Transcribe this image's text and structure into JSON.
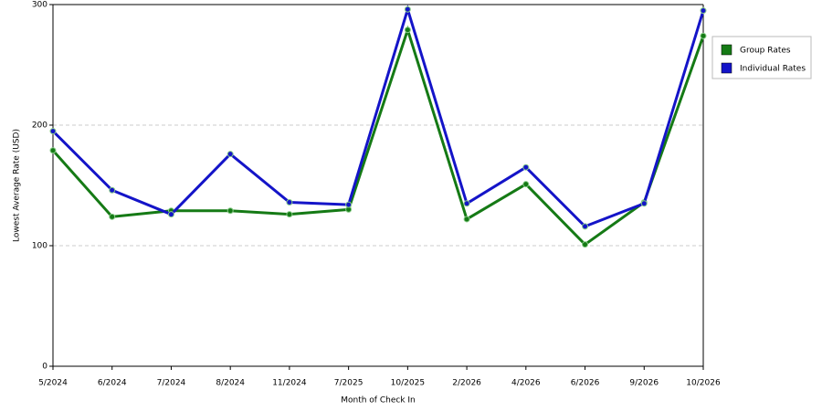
{
  "chart_data": {
    "type": "line",
    "x_label": "Month of Check In",
    "y_label": "Lowest Average Rate (USD)",
    "categories": [
      "5/2024",
      "6/2024",
      "7/2024",
      "8/2024",
      "11/2024",
      "7/2025",
      "10/2025",
      "2/2026",
      "4/2026",
      "6/2026",
      "9/2026",
      "10/2026"
    ],
    "series": [
      {
        "name": "Group Rates",
        "color": "#157a15",
        "values": [
          179,
          124,
          129,
          129,
          126,
          130,
          279,
          122,
          151,
          101,
          136,
          274
        ]
      },
      {
        "name": "Individual Rates",
        "color": "#1414c8",
        "values": [
          195,
          146,
          126,
          176,
          136,
          134,
          296,
          135,
          165,
          116,
          135,
          295
        ]
      }
    ],
    "ylim": [
      0,
      300
    ],
    "yticks": [
      0,
      100,
      200,
      300
    ],
    "grid": true,
    "legend": "right"
  }
}
